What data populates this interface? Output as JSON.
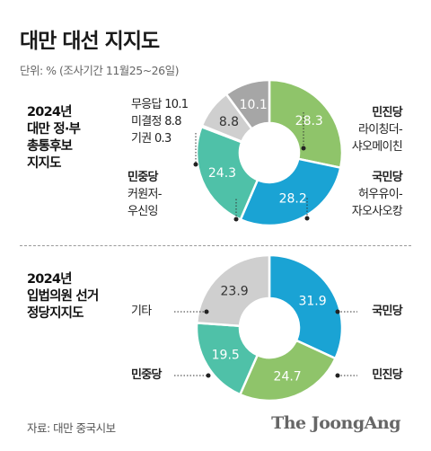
{
  "title": "대만 대선 지지도",
  "unit_note": "단위: % (조사기간 11월25~26일)",
  "source": "자료: 대만 중국시보",
  "brand": "The JoongAng",
  "chart_data": [
    {
      "type": "pie",
      "title_lines": [
        "2024년",
        "대만 정·부",
        "총통후보",
        "지지도"
      ],
      "slices": [
        {
          "party": "민진당",
          "name": "라이칭더-샤오메이친",
          "name_lines": [
            "라이칭더-",
            "샤오메이친"
          ],
          "value": 28.3,
          "color": "#8fc46a"
        },
        {
          "party": "국민당",
          "name": "허우유이-자오사오캉",
          "name_lines": [
            "허우유이-",
            "자오사오캉"
          ],
          "value": 28.2,
          "color": "#1aa3d4"
        },
        {
          "party": "민중당",
          "name": "커원저-우신잉",
          "name_lines": [
            "커원저-",
            "우신잉"
          ],
          "value": 24.3,
          "color": "#4fc1a8"
        },
        {
          "party": "",
          "name": "기권",
          "value": 0.3,
          "color": "#ffffff"
        },
        {
          "party": "",
          "name": "미결정",
          "value": 8.8,
          "color": "#cfcfcf"
        },
        {
          "party": "",
          "name": "무응답",
          "value": 10.1,
          "color": "#a6a6a6"
        }
      ],
      "side_labels": [
        {
          "text": "무응답",
          "value": "10.1"
        },
        {
          "text": "미결정",
          "value": "8.8"
        },
        {
          "text": "기권",
          "value": "0.3"
        }
      ]
    },
    {
      "type": "pie",
      "title_lines": [
        "2024년",
        "입법의원 선거",
        "정당지지도"
      ],
      "slices": [
        {
          "name": "국민당",
          "value": 31.9,
          "color": "#1aa3d4"
        },
        {
          "name": "민진당",
          "value": 24.7,
          "color": "#8fc46a"
        },
        {
          "name": "민중당",
          "value": 19.5,
          "color": "#4fc1a8"
        },
        {
          "name": "기타",
          "value": 23.9,
          "color": "#cfcfcf"
        }
      ]
    }
  ]
}
